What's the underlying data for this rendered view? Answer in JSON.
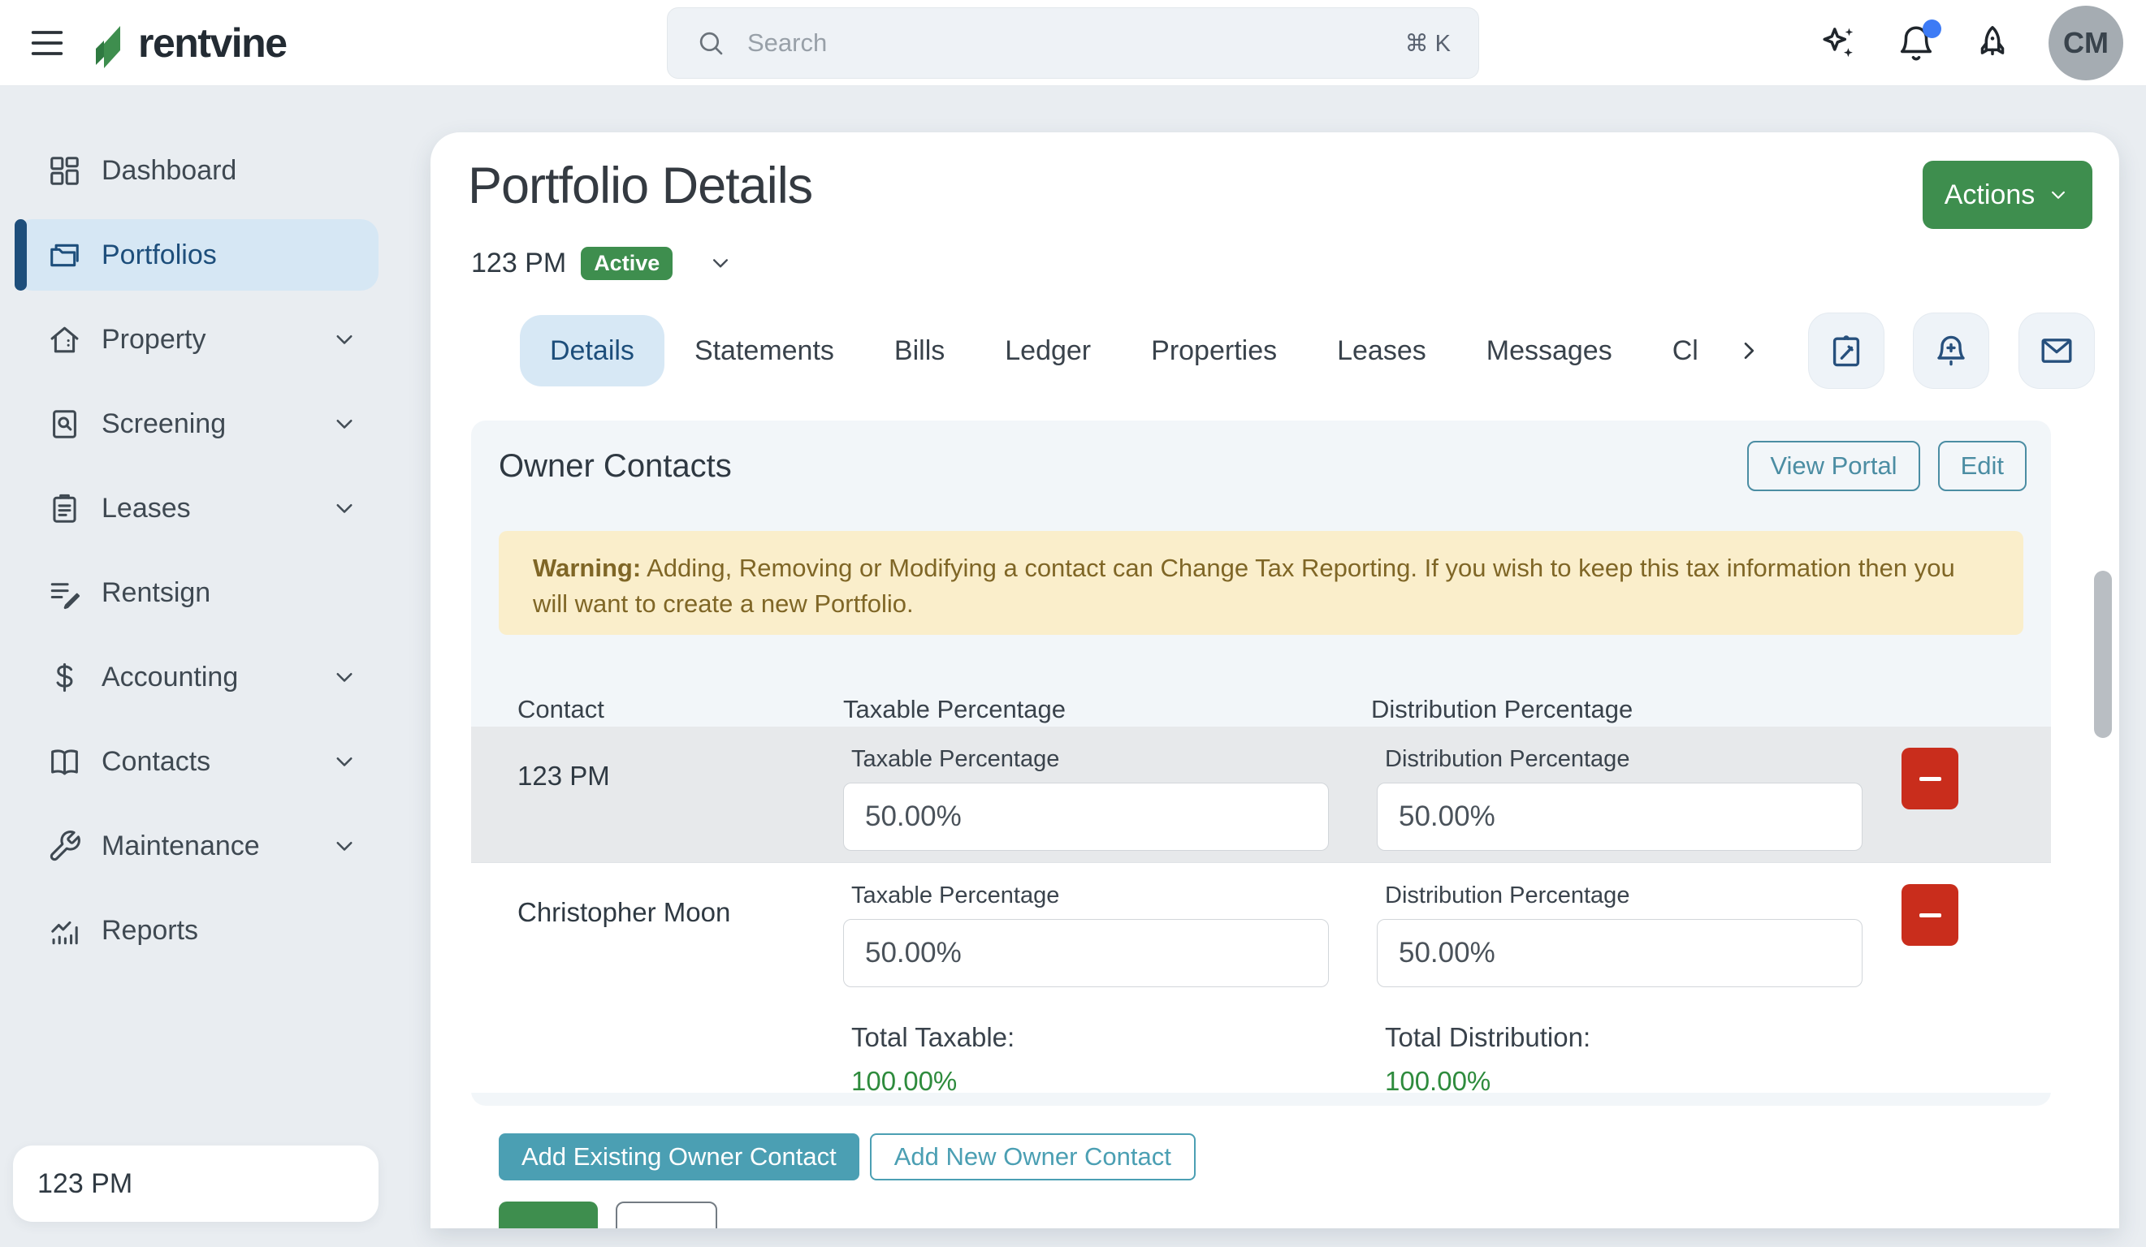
{
  "colors": {
    "brand_green": "#3e8e4e",
    "navy": "#1d4e7b",
    "active_pill_bg": "#d6e7f4",
    "teal": "#4b9fb3",
    "teal_outline": "#4b8da3",
    "danger_red": "#c92d1c",
    "warning_bg": "#faeecb",
    "warning_text": "#7f6626",
    "total_green": "#2e8b3d",
    "notification_blue": "#3d7bf5"
  },
  "topbar": {
    "brand": "rentvine",
    "search": {
      "placeholder": "Search",
      "shortcut": "⌘ K"
    },
    "icons": [
      "sparkles-icon",
      "bell-icon",
      "rocket-icon"
    ],
    "notification_dot": true,
    "avatar_initials": "CM"
  },
  "sidebar": {
    "items": [
      {
        "label": "Dashboard",
        "icon": "dashboard-icon",
        "expandable": false,
        "active": false
      },
      {
        "label": "Portfolios",
        "icon": "portfolios-icon",
        "expandable": false,
        "active": true
      },
      {
        "label": "Property",
        "icon": "property-icon",
        "expandable": true,
        "active": false
      },
      {
        "label": "Screening",
        "icon": "screening-icon",
        "expandable": true,
        "active": false
      },
      {
        "label": "Leases",
        "icon": "leases-icon",
        "expandable": true,
        "active": false
      },
      {
        "label": "Rentsign",
        "icon": "rentsign-icon",
        "expandable": false,
        "active": false
      },
      {
        "label": "Accounting",
        "icon": "accounting-icon",
        "expandable": true,
        "active": false
      },
      {
        "label": "Contacts",
        "icon": "contacts-icon",
        "expandable": true,
        "active": false
      },
      {
        "label": "Maintenance",
        "icon": "maintenance-icon",
        "expandable": true,
        "active": false
      },
      {
        "label": "Reports",
        "icon": "reports-icon",
        "expandable": false,
        "active": false
      }
    ],
    "footer_label": "123 PM"
  },
  "page": {
    "title": "Portfolio Details",
    "subtitle_name": "123 PM",
    "status_badge": "Active",
    "actions_button": "Actions",
    "tabs": [
      "Details",
      "Statements",
      "Bills",
      "Ledger",
      "Properties",
      "Leases",
      "Messages",
      "Cl"
    ],
    "active_tab": "Details",
    "tab_icon_buttons": [
      "note-icon",
      "bell-plus-icon",
      "mail-icon"
    ]
  },
  "owner_contacts": {
    "heading": "Owner Contacts",
    "view_portal_button": "View Portal",
    "edit_button": "Edit",
    "warning_label": "Warning:",
    "warning_text": "Adding, Removing or Modifying a contact can Change Tax Reporting. If you wish to keep this tax information then you will want to create a new Portfolio.",
    "columns": [
      "Contact",
      "Taxable Percentage",
      "Distribution Percentage"
    ],
    "rows": [
      {
        "contact": "123 PM",
        "taxable_label": "Taxable Percentage",
        "taxable_value": "50.00%",
        "distribution_label": "Distribution Percentage",
        "distribution_value": "50.00%"
      },
      {
        "contact": "Christopher Moon",
        "taxable_label": "Taxable Percentage",
        "taxable_value": "50.00%",
        "distribution_label": "Distribution Percentage",
        "distribution_value": "50.00%"
      }
    ],
    "totals": {
      "taxable_label": "Total Taxable:",
      "taxable_value": "100.00%",
      "distribution_label": "Total Distribution:",
      "distribution_value": "100.00%"
    },
    "add_existing_button": "Add Existing Owner Contact",
    "add_new_button": "Add New Owner Contact"
  }
}
